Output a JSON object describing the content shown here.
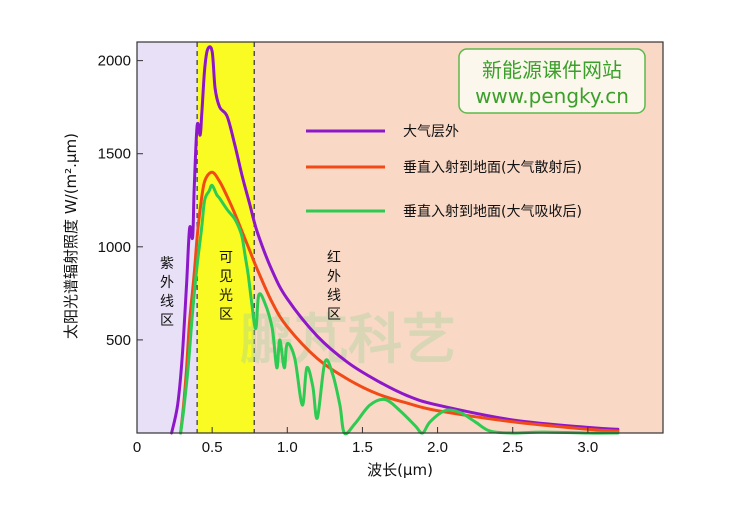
{
  "chart_data": {
    "type": "line",
    "xlabel": "波长(μm)",
    "ylabel": "太阳光谱辐射照度 W/(m².μm)",
    "xlim": [
      0,
      3.5
    ],
    "ylim": [
      0,
      2100
    ],
    "x_ticks": [
      "0",
      "0.5",
      "1.0",
      "1.5",
      "2.0",
      "2.5",
      "3.0"
    ],
    "x_tick_values": [
      0,
      0.5,
      1.0,
      1.5,
      2.0,
      2.5,
      3.0
    ],
    "y_ticks": [
      "500",
      "1000",
      "1500",
      "2000"
    ],
    "y_tick_values": [
      500,
      1000,
      1500,
      2000
    ],
    "regions": [
      {
        "label": "紫\n外\n线\n区",
        "from": 0,
        "to": 0.4,
        "color": "#e8e0f7"
      },
      {
        "label": "可\n见\n光\n区",
        "from": 0.4,
        "to": 0.78,
        "color": "#fbfb24"
      },
      {
        "label": "红\n外\n线\n区",
        "from": 0.78,
        "to": 3.5,
        "color": "#f9d8c6"
      }
    ],
    "region_boundaries": [
      0.4,
      0.78
    ],
    "series": [
      {
        "name": "大气层外",
        "color": "#8e18c9",
        "x": [
          0.23,
          0.27,
          0.3,
          0.33,
          0.35,
          0.37,
          0.38,
          0.4,
          0.42,
          0.43,
          0.45,
          0.47,
          0.5,
          0.52,
          0.55,
          0.6,
          0.65,
          0.7,
          0.75,
          0.8,
          0.9,
          1.0,
          1.2,
          1.4,
          1.6,
          1.8,
          2.0,
          2.5,
          3.0,
          3.2
        ],
        "y": [
          0,
          150,
          400,
          800,
          1100,
          1050,
          1300,
          1650,
          1600,
          1700,
          1950,
          2060,
          2050,
          1850,
          1750,
          1700,
          1550,
          1380,
          1230,
          1080,
          870,
          720,
          520,
          380,
          280,
          200,
          150,
          70,
          30,
          20
        ]
      },
      {
        "name": "垂直入射到地面(大气散射后)",
        "color": "#f24a16",
        "x": [
          0.29,
          0.31,
          0.33,
          0.35,
          0.38,
          0.4,
          0.42,
          0.45,
          0.5,
          0.55,
          0.6,
          0.65,
          0.7,
          0.75,
          0.8,
          0.9,
          1.0,
          1.2,
          1.4,
          1.6,
          1.8,
          2.0,
          2.5,
          3.0,
          3.2
        ],
        "y": [
          0,
          150,
          350,
          600,
          850,
          1050,
          1200,
          1350,
          1400,
          1350,
          1270,
          1180,
          1080,
          980,
          880,
          700,
          570,
          400,
          290,
          210,
          160,
          120,
          60,
          20,
          10
        ]
      },
      {
        "name": "垂直入射到地面(大气吸收后)",
        "color": "#2ecb52",
        "x": [
          0.29,
          0.31,
          0.34,
          0.37,
          0.4,
          0.43,
          0.45,
          0.48,
          0.5,
          0.53,
          0.55,
          0.6,
          0.65,
          0.68,
          0.7,
          0.72,
          0.74,
          0.76,
          0.79,
          0.81,
          0.85,
          0.9,
          0.93,
          0.95,
          0.98,
          1.0,
          1.05,
          1.1,
          1.13,
          1.17,
          1.2,
          1.25,
          1.3,
          1.35,
          1.38,
          1.45,
          1.55,
          1.65,
          1.75,
          1.85,
          1.9,
          1.95,
          2.05,
          2.15,
          2.25,
          2.35,
          2.5,
          2.7,
          3.0,
          3.2
        ],
        "y": [
          0,
          120,
          350,
          650,
          900,
          1100,
          1250,
          1300,
          1330,
          1280,
          1260,
          1200,
          1150,
          1100,
          1050,
          950,
          850,
          720,
          560,
          740,
          700,
          560,
          350,
          500,
          350,
          480,
          400,
          150,
          350,
          250,
          80,
          380,
          320,
          150,
          0,
          50,
          150,
          180,
          120,
          40,
          0,
          60,
          120,
          110,
          60,
          10,
          0,
          5,
          0,
          0
        ]
      }
    ]
  },
  "watermark": {
    "line1": "新能源课件网站",
    "line2": "www.pengky.cn",
    "big": "鹏芃科艺"
  }
}
